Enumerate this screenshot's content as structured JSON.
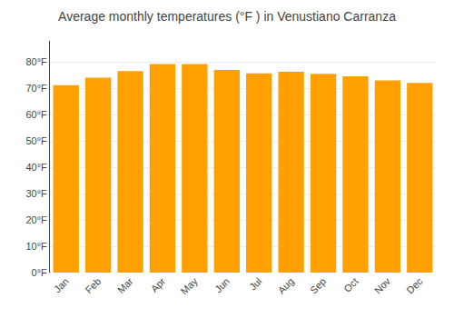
{
  "chart_data": {
    "type": "bar",
    "title": "Average monthly temperatures (°F ) in Venustiano Carranza",
    "categories": [
      "Jan",
      "Feb",
      "Mar",
      "Apr",
      "May",
      "Jun",
      "Jul",
      "Aug",
      "Sep",
      "Oct",
      "Nov",
      "Dec"
    ],
    "values": [
      71.2,
      74.0,
      76.5,
      79.2,
      79.2,
      77.0,
      75.7,
      76.3,
      75.5,
      74.5,
      73.0,
      72.0
    ],
    "color": "#FFA000",
    "ylim": [
      0,
      88
    ],
    "yticks": [
      {
        "value": 0,
        "label": "0°F"
      },
      {
        "value": 10,
        "label": "10°F"
      },
      {
        "value": 20,
        "label": "20°F"
      },
      {
        "value": 30,
        "label": "30°F"
      },
      {
        "value": 40,
        "label": "40°F"
      },
      {
        "value": 50,
        "label": "50°F"
      },
      {
        "value": 60,
        "label": "60°F"
      },
      {
        "value": 70,
        "label": "70°F"
      },
      {
        "value": 80,
        "label": "80°F"
      }
    ],
    "grid": true
  }
}
